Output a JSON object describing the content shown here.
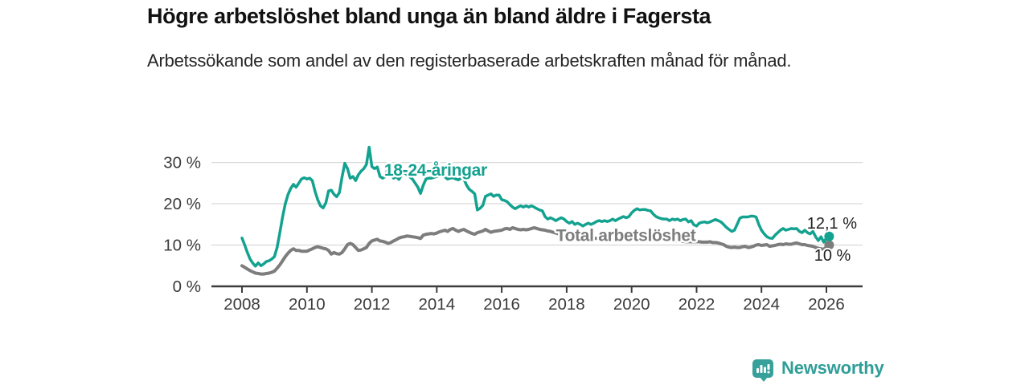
{
  "header": {
    "title": "Högre arbetslöshet bland unga än bland äldre i Fagersta",
    "subtitle": "Arbetssökande som andel av den registerbaserade arbetskraften månad för månad."
  },
  "branding": {
    "logo_text": "Newsworthy",
    "logo_icon": "newsworthy-bar-chart-badge"
  },
  "colors": {
    "youth_teal": "#14a290",
    "total_gray": "#7d7d7d",
    "axis": "#3c3c3c",
    "grid": "#dadada",
    "value_label": "#1f1f1f",
    "logo_teal": "#2f9e98"
  },
  "chart_data": {
    "type": "line",
    "title": "Högre arbetslöshet bland unga än bland äldre i Fagersta",
    "subtitle": "Arbetssökande som andel av den registerbaserade arbetskraften månad för månad.",
    "grid": "horizontal",
    "legend_position": "inline-labels",
    "x_start": 2008,
    "x_step_years": 0.0833333,
    "xlim": [
      2007.05,
      2027.1
    ],
    "ylim": [
      0,
      35
    ],
    "x_ticks": [
      2008,
      2010,
      2012,
      2014,
      2016,
      2018,
      2020,
      2022,
      2024,
      2026
    ],
    "x_tick_labels": [
      "2008",
      "2010",
      "2012",
      "2014",
      "2016",
      "2018",
      "2020",
      "2022",
      "2024",
      "2026"
    ],
    "y_ticks": [
      0,
      10,
      20,
      30
    ],
    "y_tick_labels": [
      "0 %",
      "10 %",
      "20 %",
      "30 %"
    ],
    "series": [
      {
        "name": "18-24-åringar",
        "color": "#14a290",
        "line_width": 3.5,
        "end_value": 12.1,
        "end_label": "12,1 %",
        "values": [
          11.7,
          10.0,
          8.2,
          6.6,
          5.6,
          4.9,
          5.7,
          5.0,
          5.4,
          6.0,
          6.2,
          6.6,
          7.2,
          9.5,
          13.0,
          16.8,
          20.0,
          22.2,
          23.7,
          24.7,
          24.0,
          25.0,
          26.0,
          26.3,
          26.0,
          26.2,
          25.6,
          23.0,
          21.0,
          19.5,
          19.0,
          20.2,
          23.1,
          23.3,
          22.3,
          21.7,
          22.7,
          26.5,
          29.8,
          28.5,
          26.2,
          26.6,
          25.6,
          27.0,
          27.9,
          28.5,
          29.5,
          33.7,
          29.0,
          28.5,
          28.9,
          26.6,
          26.2,
          26.6,
          28.9,
          27.9,
          26.2,
          26.6,
          25.9,
          27.0,
          27.6,
          27.0,
          26.5,
          26.0,
          25.0,
          24.0,
          22.5,
          24.5,
          26.0,
          26.2,
          26.2,
          26.4,
          26.6,
          26.9,
          27.1,
          26.5,
          26.0,
          26.2,
          26.3,
          26.0,
          25.8,
          26.2,
          26.0,
          24.5,
          23.5,
          23.0,
          22.4,
          18.5,
          18.9,
          19.6,
          21.8,
          22.1,
          22.4,
          21.8,
          22.1,
          22.1,
          21.0,
          20.8,
          20.5,
          19.8,
          19.2,
          18.8,
          19.2,
          19.5,
          19.2,
          19.5,
          19.2,
          19.5,
          19.2,
          18.8,
          18.5,
          18.3,
          16.9,
          16.3,
          16.6,
          16.3,
          15.9,
          16.3,
          16.6,
          16.3,
          15.7,
          15.3,
          15.7,
          15.0,
          15.3,
          15.0,
          14.6,
          15.0,
          15.3,
          15.0,
          15.3,
          15.7,
          15.9,
          15.7,
          15.9,
          15.7,
          15.9,
          16.3,
          15.9,
          16.3,
          16.6,
          16.9,
          16.6,
          16.9,
          17.8,
          18.4,
          18.8,
          18.5,
          18.6,
          18.6,
          18.4,
          18.3,
          17.5,
          16.9,
          16.6,
          16.4,
          16.3,
          16.3,
          15.9,
          16.3,
          16.1,
          16.3,
          15.9,
          16.2,
          16.3,
          15.6,
          15.9,
          14.9,
          14.6,
          15.3,
          15.5,
          15.6,
          15.4,
          15.6,
          15.9,
          16.2,
          15.9,
          15.6,
          15.0,
          14.3,
          13.8,
          13.3,
          13.6,
          15.0,
          16.5,
          16.8,
          16.8,
          16.8,
          17.0,
          17.0,
          16.8,
          15.0,
          13.6,
          12.7,
          12.0,
          11.7,
          11.6,
          12.4,
          13.0,
          13.6,
          14.0,
          13.6,
          13.8,
          14.0,
          13.9,
          14.0,
          13.3,
          13.0,
          13.6,
          13.0,
          12.7,
          13.3,
          12.0,
          11.1,
          12.0,
          10.7,
          11.7,
          12.1
        ]
      },
      {
        "name": "Total arbetslöshet",
        "color": "#7d7d7d",
        "line_width": 4,
        "end_value": 10.0,
        "end_label": "10 %",
        "values": [
          5.0,
          4.6,
          4.2,
          3.8,
          3.5,
          3.2,
          3.1,
          3.0,
          3.0,
          3.1,
          3.2,
          3.4,
          3.7,
          4.4,
          5.2,
          6.2,
          7.2,
          8.0,
          8.7,
          9.1,
          8.7,
          8.7,
          8.5,
          8.5,
          8.5,
          8.8,
          9.1,
          9.4,
          9.6,
          9.4,
          9.2,
          9.1,
          8.7,
          7.8,
          8.2,
          7.9,
          7.8,
          8.2,
          9.1,
          10.1,
          10.4,
          10.1,
          9.4,
          8.7,
          8.8,
          9.1,
          9.4,
          10.4,
          11.0,
          11.2,
          11.4,
          11.0,
          10.9,
          10.7,
          10.4,
          10.6,
          11.0,
          11.3,
          11.7,
          11.9,
          12.0,
          12.2,
          12.1,
          12.0,
          11.9,
          11.8,
          11.6,
          12.4,
          12.6,
          12.7,
          12.8,
          12.7,
          12.9,
          13.2,
          13.4,
          13.6,
          13.3,
          13.8,
          14.0,
          13.6,
          13.3,
          13.6,
          13.8,
          13.4,
          13.1,
          12.8,
          12.6,
          13.0,
          13.2,
          13.4,
          13.8,
          13.4,
          13.1,
          13.3,
          13.4,
          13.5,
          13.6,
          13.9,
          14.0,
          13.8,
          14.2,
          14.0,
          13.8,
          13.7,
          13.8,
          13.7,
          13.8,
          14.0,
          14.2,
          14.0,
          13.8,
          13.7,
          13.6,
          13.4,
          13.3,
          13.1,
          12.9,
          12.7,
          12.6,
          12.5,
          12.3,
          12.2,
          12.1,
          12.0,
          11.9,
          11.9,
          11.8,
          11.8,
          11.7,
          11.7,
          11.7,
          11.6,
          11.7,
          11.6,
          11.6,
          11.5,
          11.6,
          11.6,
          11.7,
          11.7,
          11.8,
          11.8,
          11.9,
          11.9,
          11.8,
          11.9,
          12.0,
          12.1,
          12.0,
          11.9,
          11.9,
          11.8,
          11.7,
          11.6,
          11.5,
          11.5,
          11.4,
          11.3,
          11.2,
          11.1,
          11.0,
          11.0,
          10.9,
          10.9,
          10.8,
          10.8,
          10.8,
          10.8,
          10.8,
          10.8,
          10.7,
          10.7,
          10.7,
          10.8,
          10.6,
          10.6,
          10.5,
          10.3,
          10.1,
          9.7,
          9.5,
          9.4,
          9.5,
          9.4,
          9.4,
          9.6,
          9.7,
          9.4,
          9.5,
          9.7,
          10.0,
          10.1,
          9.9,
          10.0,
          10.1,
          9.7,
          9.8,
          9.9,
          10.1,
          10.2,
          10.1,
          10.3,
          10.2,
          10.2,
          10.4,
          10.5,
          10.3,
          10.1,
          10.1,
          9.9,
          9.8,
          9.7,
          9.4,
          9.2,
          9.1,
          9.0,
          9.5,
          10.0
        ]
      }
    ],
    "annotations": [
      {
        "kind": "series-label",
        "series": 0,
        "text": "18-24-åringar",
        "x_year": 2012.38,
        "y_value": 28.3,
        "anchor": "start"
      },
      {
        "kind": "series-label",
        "series": 1,
        "text": "Total arbetslöshet",
        "x_year": 2017.67,
        "y_value": 12.45,
        "anchor": "start"
      },
      {
        "kind": "value-label",
        "text": "12,1 %",
        "color": "#1f1f1f",
        "x_year": 2026.94,
        "y_value": 15.35,
        "anchor": "end"
      },
      {
        "kind": "value-label",
        "text": "10 %",
        "color": "#1f1f1f",
        "x_year": 2026.75,
        "y_value": 7.6,
        "anchor": "end"
      }
    ]
  }
}
